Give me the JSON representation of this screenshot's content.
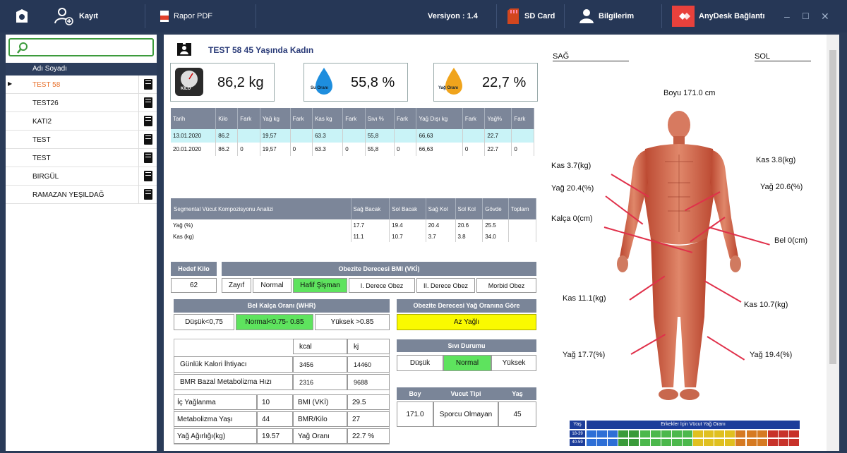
{
  "topbar": {
    "kayit": "Kayıt",
    "rapor": "Rapor PDF",
    "version": "Versiyon : 1.4",
    "sdcard": "SD Card",
    "bilgilerim": "Bilgilerim",
    "anydesk": "AnyDesk Bağlantı"
  },
  "sidebar": {
    "header": "Adı Soyadı",
    "patients": [
      "TEST 58",
      "TEST26",
      "KATI2",
      "TEST",
      "TEST",
      "BIRGÜL",
      "RAMAZAN YEŞILDAĞ"
    ]
  },
  "patient": {
    "title": "TEST 58  45 Yaşında  Kadın"
  },
  "metrics": {
    "weight": "86,2 kg",
    "weight_icon_label": "KİLO",
    "water_label": "Su Oranı",
    "water": "55,8 %",
    "fat_label": "Yağ Oranı",
    "fat": "22,7 %"
  },
  "history": {
    "headers": [
      "Tarih",
      "Kilo",
      "Fark",
      "Yağ kg",
      "Fark",
      "Kas kg",
      "Fark",
      "Sıvı %",
      "Fark",
      "Yağ Dışı kg",
      "Fark",
      "Yağ%",
      "Fark"
    ],
    "rows": [
      [
        "13.01.2020",
        "86.2",
        "",
        "19,57",
        "",
        "63.3",
        "",
        "55,8",
        "",
        "66,63",
        "",
        "22.7",
        ""
      ],
      [
        "20.01.2020",
        "86.2",
        "0",
        "19,57",
        "0",
        "63.3",
        "0",
        "55,8",
        "0",
        "66,63",
        "0",
        "22.7",
        "0"
      ]
    ]
  },
  "segmental": {
    "title": "Segmental Vücut Kompozisyonu Analizi",
    "headers": [
      "Sağ Bacak",
      "Sol Bacak",
      "Sağ Kol",
      "Sol Kol",
      "Gövde",
      "Toplam"
    ],
    "rows": [
      {
        "label": "Yağ (%)",
        "values": [
          "17.7",
          "19.4",
          "20.4",
          "20.6",
          "25.5",
          ""
        ]
      },
      {
        "label": "Kas (kg)",
        "values": [
          "11.1",
          "10.7",
          "3.7",
          "3.8",
          "34.0",
          ""
        ]
      }
    ]
  },
  "hedef": {
    "label": "Hedef Kilo",
    "value": "62"
  },
  "bmi": {
    "label": "Obezite Derecesi  BMI (VKİ)",
    "options": [
      "Zayıf",
      "Normal",
      "Hafif Şişman",
      "I. Derece Obez",
      "II. Derece Obez",
      "Morbid Obez"
    ],
    "active": 2
  },
  "whr": {
    "label": "Bel Kalça Oranı (WHR)",
    "options": [
      "Düşük<0,75",
      "Normal<0.75- 0.85",
      "Yüksek >0.85"
    ],
    "active": 1
  },
  "obez_fat": {
    "label": "Obezite Derecesi Yağ Oranına Göre",
    "value": "Az Yağlı"
  },
  "calorie": {
    "kcal": "kcal",
    "kj": "kj",
    "rows": [
      {
        "label": "Günlük Kalori İhtiyacı",
        "kcal": "3456",
        "kj": "14460"
      },
      {
        "label": "BMR Bazal Metabolizma Hızı",
        "kcal": "2316",
        "kj": "9688"
      }
    ]
  },
  "fluid": {
    "label": "Sıvı Durumu",
    "options": [
      "Düşük",
      "Normal",
      "Yüksek"
    ],
    "active": 1
  },
  "details": [
    {
      "l1": "İç Yağlanma",
      "v1": "10",
      "l2": "BMI (VKİ)",
      "v2": "29.5"
    },
    {
      "l1": "Metabolizma Yaşı",
      "v1": "44",
      "l2": "BMR/Kilo",
      "v2": "27"
    },
    {
      "l1": "Yağ Ağırlığı(kg)",
      "v1": "19.57",
      "l2": "Yağ Oranı",
      "v2": "22.7 %"
    }
  ],
  "bodytype": {
    "headers": [
      "Boy",
      "Vucut Tipi",
      "Yaş"
    ],
    "values": [
      "171.0",
      "Sporcu Olmayan",
      "45"
    ]
  },
  "body": {
    "sag": "SAĞ",
    "sol": "SOL",
    "height": "Boyu 171.0 cm",
    "labels": {
      "kas_r_arm": "Kas 3.7(kg)",
      "yag_r_arm": "Yağ 20.4(%)",
      "kalca": "Kalça 0(cm)",
      "kas_l_arm": "Kas 3.8(kg)",
      "yag_l_arm": "Yağ 20.6(%)",
      "bel": "Bel 0(cm)",
      "kas_r_leg": "Kas 11.1(kg)",
      "kas_l_leg": "Kas 10.7(kg)",
      "yag_r_leg": "Yağ 17.7(%)",
      "yag_l_leg": "Yağ 19.4(%)"
    }
  },
  "fatchart": {
    "title": "Erkekler İçin Vücut Yağ Oranı",
    "age_header": "Yaş",
    "rows": [
      "18-39",
      "40-59"
    ]
  },
  "colors": {
    "accent_green": "#5ee35e",
    "highlight_yellow": "#fafa00",
    "header": "#7a8598"
  }
}
